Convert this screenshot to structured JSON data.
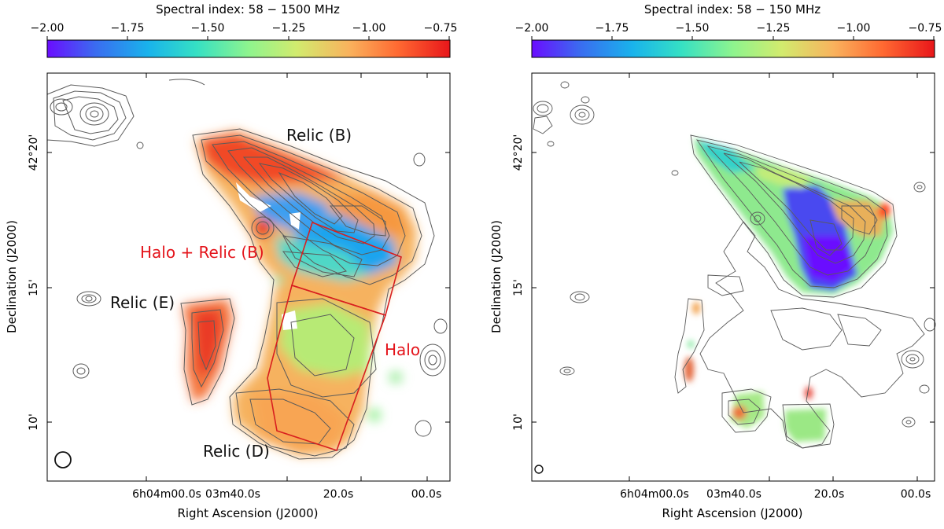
{
  "colormap": {
    "stops": [
      "#6a0dff",
      "#3a6cf0",
      "#19b3ec",
      "#35e0c4",
      "#8ef48e",
      "#d2eb6e",
      "#f9b25d",
      "#ff6a32",
      "#e8161a"
    ],
    "contour_color": "#5a5a5a",
    "box_color": "#d81f1f",
    "label_red": "#e4141b"
  },
  "panels": [
    {
      "colorbar_title": "Spectral index: 58 − 1500 MHz",
      "colorbar_ticks": [
        "−2.00",
        "−1.75",
        "−1.50",
        "−1.25",
        "−1.00",
        "−0.75"
      ],
      "ra_ticks": [
        "6h04m00.0s",
        "03m40.0s",
        "20.0s",
        "00.0s"
      ],
      "dec_ticks": [
        "42°20'",
        "15'",
        "10'"
      ],
      "xlabel": "Right Ascension (J2000)",
      "ylabel": "Declination (J2000)",
      "annotations": {
        "relic_b": "Relic (B)",
        "relic_e": "Relic (E)",
        "relic_d": "Relic (D)",
        "halo_relic_b": "Halo + Relic (B)",
        "halo": "Halo"
      }
    },
    {
      "colorbar_title": "Spectral index: 58 − 150 MHz",
      "colorbar_ticks": [
        "−2.00",
        "−1.75",
        "−1.50",
        "−1.25",
        "−1.00",
        "−0.75"
      ],
      "ra_ticks": [
        "6h04m00.0s",
        "03m40.0s",
        "20.0s",
        "00.0s"
      ],
      "dec_ticks": [
        "42°20'",
        "15'",
        "10'"
      ],
      "xlabel": "Right Ascension (J2000)",
      "ylabel": "Declination (J2000)"
    }
  ]
}
